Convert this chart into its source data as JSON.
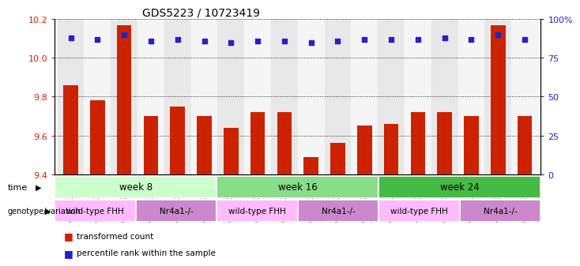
{
  "title": "GDS5223 / 10723419",
  "samples": [
    "GSM1322686",
    "GSM1322687",
    "GSM1322688",
    "GSM1322689",
    "GSM1322690",
    "GSM1322691",
    "GSM1322692",
    "GSM1322693",
    "GSM1322694",
    "GSM1322695",
    "GSM1322696",
    "GSM1322697",
    "GSM1322698",
    "GSM1322699",
    "GSM1322700",
    "GSM1322701",
    "GSM1322702",
    "GSM1322703"
  ],
  "transformed_counts": [
    9.86,
    9.78,
    10.17,
    9.7,
    9.75,
    9.7,
    9.64,
    9.72,
    9.72,
    9.49,
    9.56,
    9.65,
    9.66,
    9.72,
    9.72,
    9.7,
    10.17,
    9.7
  ],
  "percentile_ranks": [
    88,
    87,
    90,
    86,
    87,
    86,
    85,
    86,
    86,
    85,
    86,
    87,
    87,
    87,
    88,
    87,
    90,
    87
  ],
  "ylim_left": [
    9.4,
    10.2
  ],
  "ylim_right": [
    0,
    100
  ],
  "yticks_left": [
    9.4,
    9.6,
    9.8,
    10.0,
    10.2
  ],
  "yticks_right": [
    0,
    25,
    50,
    75,
    100
  ],
  "bar_color": "#cc2200",
  "dot_color": "#2222cc",
  "time_groups": [
    {
      "label": "week 8",
      "start": 0,
      "end": 6,
      "color": "#ccffcc"
    },
    {
      "label": "week 16",
      "start": 6,
      "end": 12,
      "color": "#88dd88"
    },
    {
      "label": "week 24",
      "start": 12,
      "end": 18,
      "color": "#44bb44"
    }
  ],
  "genotype_groups": [
    {
      "label": "wild-type FHH",
      "start": 0,
      "end": 3,
      "color": "#ffbbff"
    },
    {
      "label": "Nr4a1-/-",
      "start": 3,
      "end": 6,
      "color": "#cc88cc"
    },
    {
      "label": "wild-type FHH",
      "start": 6,
      "end": 9,
      "color": "#ffbbff"
    },
    {
      "label": "Nr4a1-/-",
      "start": 9,
      "end": 12,
      "color": "#cc88cc"
    },
    {
      "label": "wild-type FHH",
      "start": 12,
      "end": 15,
      "color": "#ffbbff"
    },
    {
      "label": "Nr4a1-/-",
      "start": 15,
      "end": 18,
      "color": "#cc88cc"
    }
  ],
  "legend_items": [
    {
      "label": "transformed count",
      "color": "#cc2200"
    },
    {
      "label": "percentile rank within the sample",
      "color": "#2222cc"
    }
  ]
}
